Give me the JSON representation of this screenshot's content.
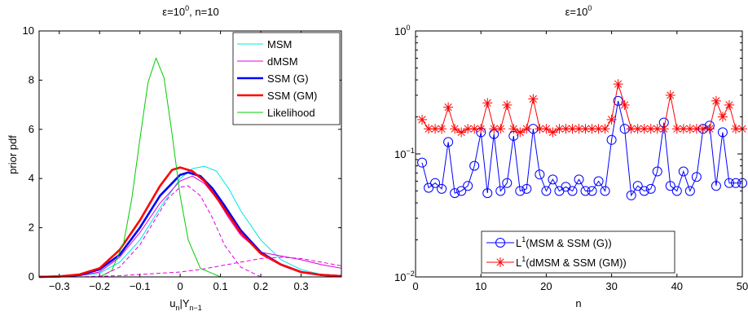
{
  "chart_data": [
    {
      "type": "line",
      "title": "ε=10",
      "title_sup": "0",
      "title_suffix": ", n=10",
      "xlabel": "u",
      "xlabel_sub1": "n",
      "xlabel_mid": "|Y",
      "xlabel_sub2": "n−1",
      "ylabel": "prior pdf",
      "xlim": [
        -0.35,
        0.4
      ],
      "ylim": [
        0,
        10
      ],
      "xticks": [
        -0.3,
        -0.2,
        -0.1,
        0,
        0.1,
        0.2,
        0.3
      ],
      "xtick_labels": [
        "−0.3",
        "−0.2",
        "−0.1",
        "0",
        "0.1",
        "0.2",
        "0.3"
      ],
      "yticks": [
        0,
        2,
        4,
        6,
        8,
        10
      ],
      "ytick_labels": [
        "0",
        "2",
        "4",
        "6",
        "8",
        "10"
      ],
      "grid": false,
      "legend_position": "top-right",
      "series": [
        {
          "name": "MSM",
          "color": "#00e5e5",
          "width": 1,
          "dash": "",
          "x": [
            -0.35,
            -0.3,
            -0.25,
            -0.2,
            -0.15,
            -0.1,
            -0.05,
            0,
            0.03,
            0.06,
            0.09,
            0.12,
            0.15,
            0.2,
            0.25,
            0.3,
            0.35,
            0.4
          ],
          "y": [
            0,
            0.01,
            0.05,
            0.15,
            0.6,
            1.5,
            2.8,
            4.0,
            4.4,
            4.5,
            4.3,
            3.6,
            2.7,
            1.5,
            0.7,
            0.3,
            0.1,
            0.05
          ]
        },
        {
          "name": "dMSM",
          "color": "#e000e0",
          "width": 1,
          "dash": "",
          "x": [
            -0.35,
            -0.3,
            -0.25,
            -0.2,
            -0.15,
            -0.1,
            -0.05,
            0,
            0.03,
            0.06,
            0.09,
            0.12,
            0.15,
            0.2,
            0.25,
            0.3,
            0.35,
            0.4
          ],
          "y": [
            0,
            0.01,
            0.05,
            0.2,
            0.8,
            1.8,
            3.0,
            3.9,
            4.1,
            3.8,
            3.2,
            2.4,
            1.7,
            1.0,
            0.85,
            0.7,
            0.5,
            0.35
          ]
        },
        {
          "name": "SSM (G)",
          "color": "#0000ff",
          "width": 2.6,
          "dash": "",
          "x": [
            -0.35,
            -0.3,
            -0.25,
            -0.2,
            -0.15,
            -0.1,
            -0.05,
            0,
            0.02,
            0.05,
            0.08,
            0.11,
            0.15,
            0.2,
            0.25,
            0.3,
            0.35,
            0.4
          ],
          "y": [
            0,
            0.02,
            0.08,
            0.3,
            0.9,
            2.0,
            3.3,
            4.15,
            4.25,
            4.1,
            3.6,
            2.9,
            1.9,
            1.0,
            0.5,
            0.2,
            0.08,
            0.03
          ]
        },
        {
          "name": "SSM (GM)",
          "color": "#ff0000",
          "width": 2.6,
          "dash": "",
          "x": [
            -0.35,
            -0.3,
            -0.25,
            -0.2,
            -0.15,
            -0.1,
            -0.05,
            -0.02,
            0,
            0.03,
            0.06,
            0.1,
            0.15,
            0.2,
            0.25,
            0.3,
            0.35,
            0.4
          ],
          "y": [
            0,
            0.02,
            0.1,
            0.35,
            1.1,
            2.3,
            3.7,
            4.35,
            4.45,
            4.3,
            3.9,
            3.0,
            1.8,
            0.95,
            0.5,
            0.2,
            0.08,
            0.03
          ]
        },
        {
          "name": "Likelihood",
          "color": "#00cc00",
          "width": 1,
          "dash": "",
          "x": [
            -0.35,
            -0.2,
            -0.17,
            -0.14,
            -0.12,
            -0.1,
            -0.08,
            -0.06,
            -0.04,
            -0.02,
            0,
            0.02,
            0.05,
            0.1,
            0.4
          ],
          "y": [
            0,
            0,
            0.25,
            1.4,
            3.2,
            5.6,
            7.9,
            8.9,
            8.1,
            5.8,
            3.3,
            1.5,
            0.35,
            0,
            0
          ]
        },
        {
          "name": "",
          "color": "#e000e0",
          "width": 1,
          "dash": "5,3",
          "x": [
            -0.2,
            -0.15,
            -0.1,
            -0.06,
            -0.03,
            0,
            0.02,
            0.05,
            0.08,
            0.11,
            0.15,
            0.2
          ],
          "y": [
            0,
            0.4,
            1.3,
            2.4,
            3.2,
            3.65,
            3.7,
            3.3,
            2.4,
            1.3,
            0.4,
            0
          ]
        },
        {
          "name": "",
          "color": "#e000e0",
          "width": 1,
          "dash": "5,3",
          "x": [
            -0.35,
            -0.25,
            -0.15,
            -0.05,
            0,
            0.05,
            0.1,
            0.15,
            0.2,
            0.25,
            0.3,
            0.35,
            0.4
          ],
          "y": [
            0,
            0,
            0.05,
            0.15,
            0.2,
            0.3,
            0.45,
            0.6,
            0.75,
            0.8,
            0.75,
            0.6,
            0.45
          ]
        }
      ]
    },
    {
      "type": "line",
      "title": "ε=10",
      "title_sup": "0",
      "title_suffix": "",
      "xlabel": "n",
      "ylabel": "",
      "xlim": [
        0,
        50
      ],
      "ylim": [
        0.01,
        1
      ],
      "yscale": "log",
      "xticks": [
        0,
        10,
        20,
        30,
        40,
        50
      ],
      "xtick_labels": [
        "0",
        "10",
        "20",
        "30",
        "40",
        "50"
      ],
      "yticks": [
        0.01,
        0.1,
        1
      ],
      "ytick_base": "10",
      "ytick_exps": [
        "−2",
        "−1",
        "0"
      ],
      "grid": false,
      "legend_position": "bottom-center",
      "x": [
        1,
        2,
        3,
        4,
        5,
        6,
        7,
        8,
        9,
        10,
        11,
        12,
        13,
        14,
        15,
        16,
        17,
        18,
        19,
        20,
        21,
        22,
        23,
        24,
        25,
        26,
        27,
        28,
        29,
        30,
        31,
        32,
        33,
        34,
        35,
        36,
        37,
        38,
        39,
        40,
        41,
        42,
        43,
        44,
        45,
        46,
        47,
        48,
        49,
        50
      ],
      "series": [
        {
          "name": "L",
          "legend_sup": "1",
          "legend_rest": "(MSM & SSM (G))",
          "color": "#0000ff",
          "marker": "circle",
          "values": [
            0.085,
            0.053,
            0.058,
            0.052,
            0.125,
            0.048,
            0.05,
            0.055,
            0.08,
            0.15,
            0.048,
            0.145,
            0.05,
            0.058,
            0.14,
            0.05,
            0.052,
            0.16,
            0.068,
            0.05,
            0.062,
            0.05,
            0.054,
            0.05,
            0.062,
            0.05,
            0.05,
            0.06,
            0.05,
            0.13,
            0.27,
            0.16,
            0.046,
            0.055,
            0.05,
            0.052,
            0.072,
            0.18,
            0.055,
            0.05,
            0.072,
            0.05,
            0.065,
            0.16,
            0.17,
            0.055,
            0.15,
            0.058,
            0.058,
            0.058
          ]
        },
        {
          "name": "L",
          "legend_sup": "1",
          "legend_rest": "(dMSM & SSM (GM))",
          "color": "#ff0000",
          "marker": "star",
          "values": [
            0.19,
            0.16,
            0.16,
            0.16,
            0.24,
            0.16,
            0.15,
            0.16,
            0.16,
            0.16,
            0.26,
            0.16,
            0.16,
            0.25,
            0.16,
            0.15,
            0.16,
            0.28,
            0.16,
            0.16,
            0.15,
            0.16,
            0.16,
            0.16,
            0.16,
            0.16,
            0.16,
            0.16,
            0.16,
            0.19,
            0.37,
            0.25,
            0.16,
            0.16,
            0.16,
            0.16,
            0.16,
            0.16,
            0.3,
            0.16,
            0.16,
            0.16,
            0.16,
            0.16,
            0.16,
            0.27,
            0.2,
            0.25,
            0.16,
            0.16
          ]
        }
      ]
    }
  ]
}
